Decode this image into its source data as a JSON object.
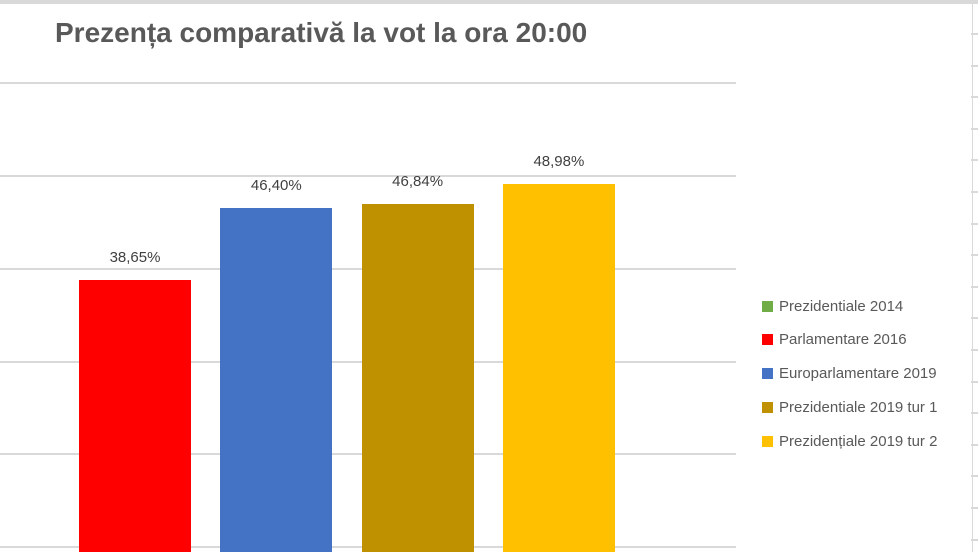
{
  "title": "Prezența comparativă la vot la ora 20:00",
  "chart_data": {
    "type": "bar",
    "title": "Prezența comparativă la vot la ora 20:00",
    "series": [
      {
        "name": "Prezidentiale 2014",
        "value": null,
        "label": null,
        "color": "#70AD47"
      },
      {
        "name": "Parlamentare 2016",
        "value": 38.65,
        "label": "38,65%",
        "color": "#FF0000"
      },
      {
        "name": "Europarlamentare 2019",
        "value": 46.4,
        "label": "46,40%",
        "color": "#4472C4"
      },
      {
        "name": "Prezidentiale 2019 tur 1",
        "value": 46.84,
        "label": "46,84%",
        "color": "#BF9000"
      },
      {
        "name": "Prezidențiale 2019 tur 2",
        "value": 48.98,
        "label": "48,98%",
        "color": "#FFC000"
      }
    ],
    "xlabel": "",
    "ylabel": "",
    "ylim": [
      0,
      60
    ],
    "y_gridlines": [
      10,
      20,
      30,
      40,
      50,
      60
    ],
    "grid": true,
    "legend_position": "right",
    "value_axis_labels_visible": false,
    "value_format": "percent, comma decimal separator"
  },
  "colors": {
    "title_text": "#595959",
    "bar_label_text": "#404040",
    "legend_text": "#595959",
    "gridline": "#D9D9D9",
    "top_strip": "#D9D9D9"
  }
}
